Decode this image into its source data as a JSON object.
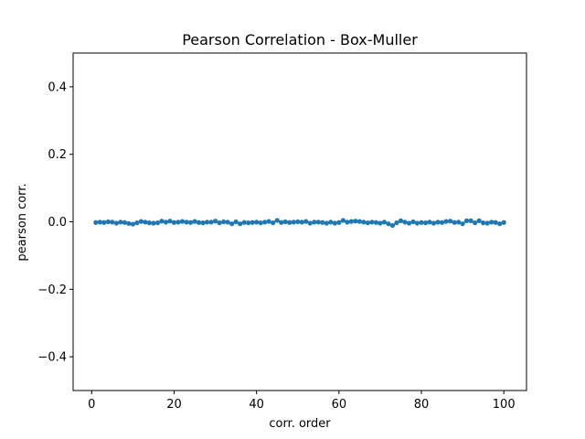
{
  "chart_data": {
    "type": "line",
    "title": "Pearson Correlation - Box-Muller",
    "xlabel": "corr. order",
    "ylabel": "pearson corr.",
    "xlim": [
      -4.5,
      105.5
    ],
    "ylim": [
      -0.5,
      0.5
    ],
    "xticks": [
      0,
      20,
      40,
      60,
      80,
      100
    ],
    "yticks": [
      -0.4,
      -0.2,
      0.0,
      0.2,
      0.4
    ],
    "ytick_labels": [
      "−0.4",
      "−0.2",
      "0.0",
      "0.2",
      "0.4"
    ],
    "grid": false,
    "legend": "none",
    "color": "#1f77b4",
    "marker": "circle",
    "series": [
      {
        "x": [
          1,
          2,
          3,
          4,
          5,
          6,
          7,
          8,
          9,
          10,
          11,
          12,
          13,
          14,
          15,
          16,
          17,
          18,
          19,
          20,
          21,
          22,
          23,
          24,
          25,
          26,
          27,
          28,
          29,
          30,
          31,
          32,
          33,
          34,
          35,
          36,
          37,
          38,
          39,
          40,
          41,
          42,
          43,
          44,
          45,
          46,
          47,
          48,
          49,
          50,
          51,
          52,
          53,
          54,
          55,
          56,
          57,
          58,
          59,
          60,
          61,
          62,
          63,
          64,
          65,
          66,
          67,
          68,
          69,
          70,
          71,
          72,
          73,
          74,
          75,
          76,
          77,
          78,
          79,
          80,
          81,
          82,
          83,
          84,
          85,
          86,
          87,
          88,
          89,
          90,
          91,
          92,
          93,
          94,
          95,
          96,
          97,
          98,
          99,
          100
        ],
        "values": [
          -0.002,
          -0.001,
          -0.002,
          0.0,
          -0.001,
          -0.004,
          -0.001,
          -0.002,
          -0.005,
          -0.007,
          -0.003,
          0.001,
          -0.001,
          -0.003,
          -0.004,
          -0.003,
          0.002,
          -0.001,
          0.002,
          -0.002,
          -0.001,
          0.001,
          -0.001,
          -0.002,
          0.001,
          -0.002,
          -0.003,
          -0.001,
          -0.001,
          0.002,
          -0.003,
          0.0,
          -0.001,
          -0.006,
          0.0,
          -0.006,
          -0.002,
          -0.003,
          -0.002,
          -0.001,
          -0.003,
          -0.001,
          0.001,
          -0.003,
          0.004,
          -0.002,
          0.0,
          -0.002,
          -0.001,
          0.0,
          -0.001,
          0.001,
          -0.004,
          -0.001,
          -0.001,
          -0.002,
          -0.004,
          -0.001,
          -0.004,
          -0.002,
          0.004,
          -0.001,
          0.001,
          0.002,
          0.001,
          -0.001,
          -0.003,
          -0.001,
          -0.002,
          -0.004,
          -0.001,
          -0.006,
          -0.011,
          -0.003,
          0.003,
          -0.001,
          -0.004,
          0.0,
          -0.004,
          -0.002,
          -0.003,
          -0.001,
          -0.004,
          -0.001,
          -0.002,
          0.001,
          0.002,
          -0.002,
          -0.001,
          -0.006,
          0.003,
          0.003,
          -0.003,
          0.003,
          -0.003,
          -0.004,
          -0.001,
          -0.002,
          -0.006,
          -0.002
        ]
      }
    ]
  }
}
